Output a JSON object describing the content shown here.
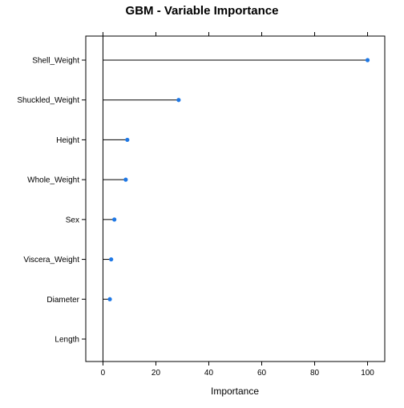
{
  "chart_data": {
    "type": "scatter",
    "title": "GBM - Variable Importance",
    "xlabel": "Importance",
    "ylabel": "",
    "xlim": [
      -6.5,
      106.5
    ],
    "xticks": [
      0,
      20,
      40,
      60,
      80,
      100
    ],
    "xtick_labels": [
      "0",
      "20",
      "40",
      "60",
      "80",
      "100"
    ],
    "categories": [
      "Shell_Weight",
      "Shuckled_Weight",
      "Height",
      "Whole_Weight",
      "Sex",
      "Viscera_Weight",
      "Diameter",
      "Length"
    ],
    "values": [
      100,
      28.6,
      9.2,
      8.6,
      4.3,
      3.1,
      2.6,
      0
    ],
    "reference_line_x": 0,
    "grid": false,
    "colors": {
      "point": "#1e78e6",
      "stem": "#000000",
      "axis": "#000000"
    }
  }
}
